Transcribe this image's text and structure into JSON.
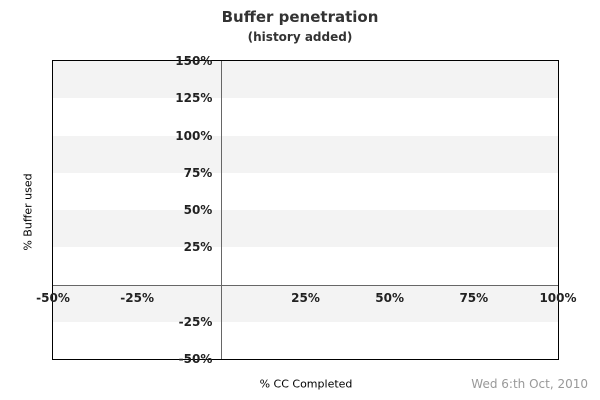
{
  "chart_data": {
    "type": "line",
    "title": "Buffer penetration",
    "subtitle": "(history added)",
    "xlabel": "% CC Completed",
    "ylabel": "% Buffer used",
    "date": "Wed 6:th Oct, 2010",
    "xlim": [
      -50,
      100
    ],
    "ylim": [
      -50,
      150
    ],
    "x_ticks": [
      {
        "value": -50,
        "label": "-50%"
      },
      {
        "value": -25,
        "label": "-25%"
      },
      {
        "value": 25,
        "label": "25%"
      },
      {
        "value": 50,
        "label": "50%"
      },
      {
        "value": 75,
        "label": "75%"
      },
      {
        "value": 100,
        "label": "100%"
      }
    ],
    "y_ticks": [
      {
        "value": 150,
        "label": "150%"
      },
      {
        "value": 125,
        "label": "125%"
      },
      {
        "value": 100,
        "label": "100%"
      },
      {
        "value": 75,
        "label": "75%"
      },
      {
        "value": 50,
        "label": "50%"
      },
      {
        "value": 25,
        "label": "25%"
      },
      {
        "value": -25,
        "label": "-25%"
      },
      {
        "value": -50,
        "label": "-50%"
      }
    ],
    "series": [],
    "bands": {
      "color": "#f3f3f3",
      "ranges": [
        [
          125,
          150
        ],
        [
          75,
          100
        ],
        [
          25,
          50
        ],
        [
          -25,
          0
        ]
      ]
    },
    "zero_lines": true,
    "grid": "off",
    "legend": "none"
  },
  "colors": {
    "background": "#ffffff",
    "band": "#f3f3f3",
    "zero_line": "#666666",
    "plot_border": "#000000",
    "tick_text": "#222222",
    "title_text": "#333333",
    "axis_title_text": "#000000",
    "date_text": "#999999"
  }
}
